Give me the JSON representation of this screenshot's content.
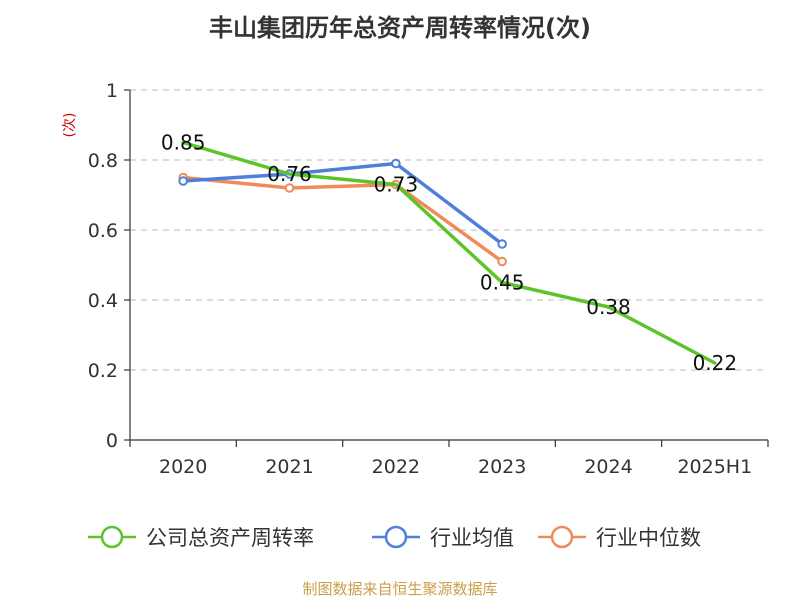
{
  "chart_data": {
    "type": "line",
    "title": "丰山集团历年总资产周转率情况(次)",
    "ylabel": "(次)",
    "xlabel": "",
    "categories": [
      "2020",
      "2021",
      "2022",
      "2023",
      "2024",
      "2025H1"
    ],
    "ylim": [
      0,
      1
    ],
    "yticks": [
      "0",
      "0.2",
      "0.4",
      "0.6",
      "0.8",
      "1"
    ],
    "grid": true,
    "legend_position": "bottom",
    "series": [
      {
        "name": "公司总资产周转率",
        "color": "#5cc428",
        "values": [
          0.85,
          0.76,
          0.73,
          0.45,
          0.38,
          0.22
        ],
        "labels": [
          "0.85",
          "0.76",
          "0.73",
          "0.45",
          "0.38",
          "0.22"
        ]
      },
      {
        "name": "行业均值",
        "color": "#4f7fdb",
        "values": [
          0.74,
          0.76,
          0.79,
          0.56,
          null,
          null
        ]
      },
      {
        "name": "行业中位数",
        "color": "#f08a5b",
        "values": [
          0.75,
          0.72,
          0.73,
          0.51,
          null,
          null
        ]
      }
    ]
  },
  "source": "制图数据来自恒生聚源数据库"
}
